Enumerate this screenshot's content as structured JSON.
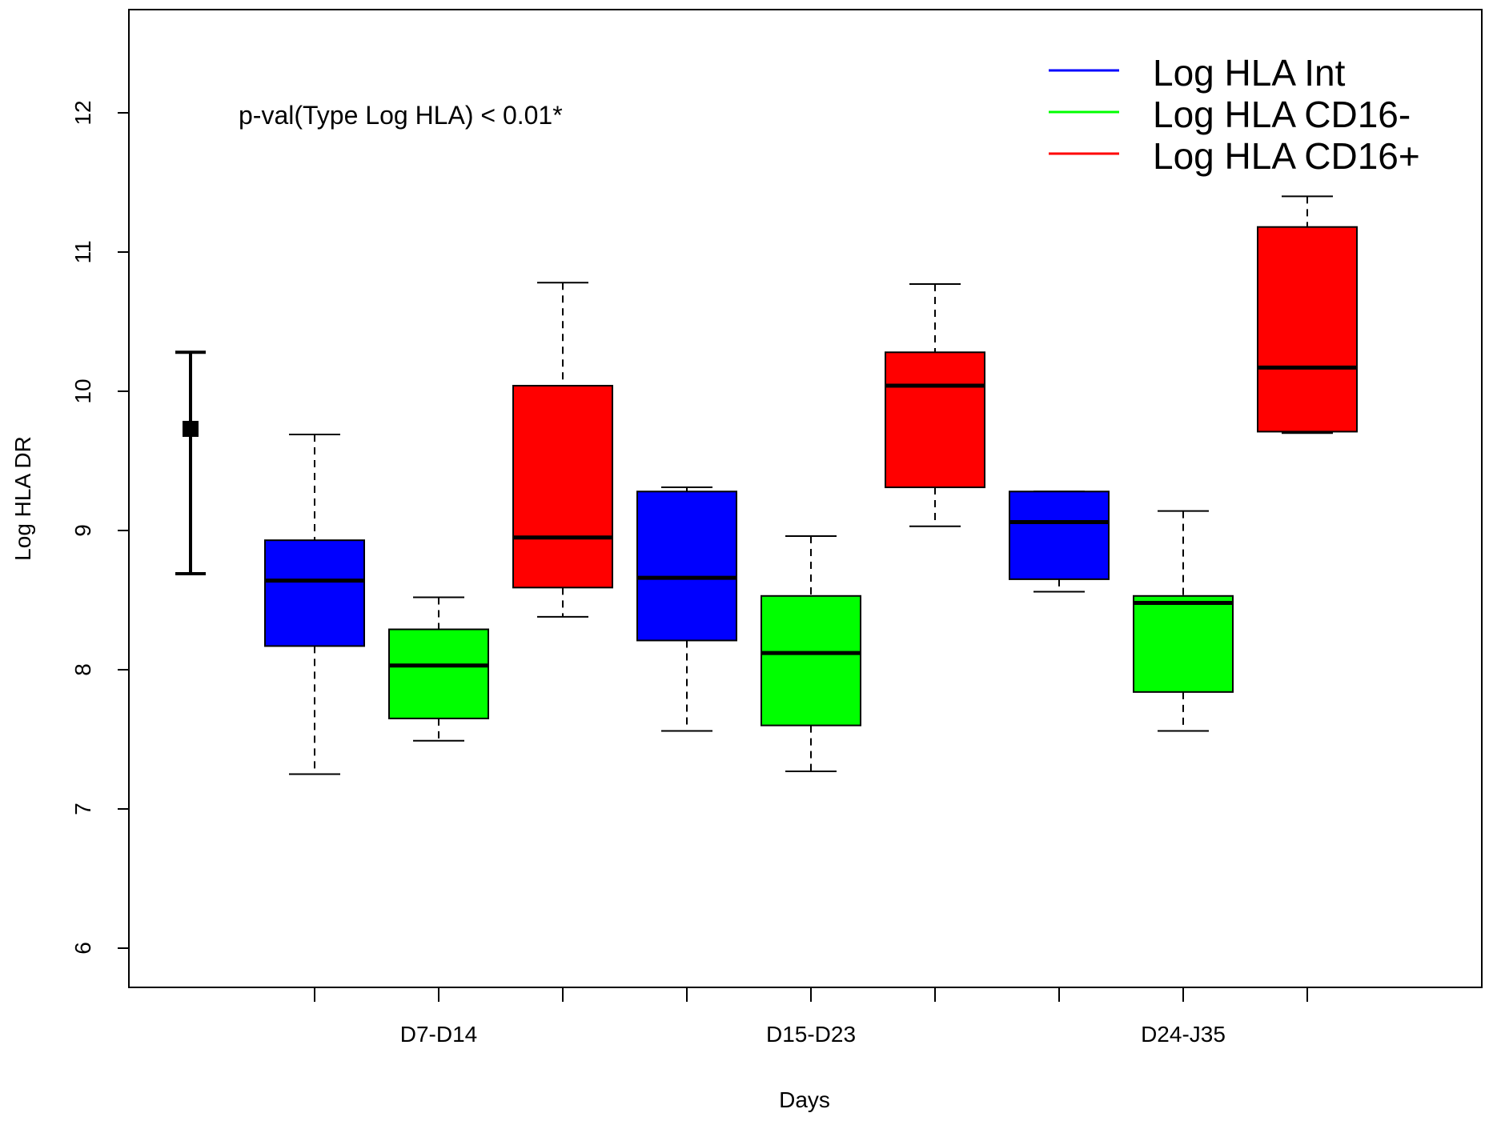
{
  "chart_data": {
    "type": "boxplot",
    "title": "",
    "xlabel": "Days",
    "ylabel": "Log HLA DR",
    "ylim": [
      5.75,
      12.75
    ],
    "yticks": [
      6,
      7,
      8,
      9,
      10,
      11,
      12
    ],
    "yticks_labels": [
      "6",
      "7",
      "8",
      "9",
      "10",
      "11",
      "12"
    ],
    "categories": [
      "D7-D14",
      "D15-D23",
      "D24-J35"
    ],
    "annotation": "p-val(Type Log HLA) < 0.01*",
    "legend_position": "top-right",
    "series": [
      {
        "name": "Log HLA Int",
        "color": "#0000ff",
        "boxes": [
          {
            "min": 7.25,
            "q1": 8.17,
            "median": 8.64,
            "q3": 8.93,
            "max": 9.69
          },
          {
            "min": 7.56,
            "q1": 8.21,
            "median": 8.66,
            "q3": 9.28,
            "max": 9.31
          },
          {
            "min": 8.56,
            "q1": 8.65,
            "median": 9.06,
            "q3": 9.28,
            "max": 9.28
          }
        ]
      },
      {
        "name": "Log HLA CD16-",
        "color": "#00ff00",
        "boxes": [
          {
            "min": 7.49,
            "q1": 7.65,
            "median": 8.03,
            "q3": 8.29,
            "max": 8.52
          },
          {
            "min": 7.27,
            "q1": 7.6,
            "median": 8.12,
            "q3": 8.53,
            "max": 8.96
          },
          {
            "min": 7.56,
            "q1": 7.84,
            "median": 8.48,
            "q3": 8.53,
            "max": 9.14
          }
        ]
      },
      {
        "name": "Log HLA CD16+",
        "color": "#ff0000",
        "boxes": [
          {
            "min": 8.38,
            "q1": 8.59,
            "median": 8.95,
            "q3": 10.04,
            "max": 10.78
          },
          {
            "min": 9.03,
            "q1": 9.31,
            "median": 10.04,
            "q3": 10.28,
            "max": 10.77
          },
          {
            "min": 9.7,
            "q1": 9.71,
            "median": 10.17,
            "q3": 11.18,
            "max": 11.4
          }
        ]
      }
    ],
    "reference_interval": {
      "center": 9.73,
      "lower": 8.69,
      "upper": 10.28
    }
  }
}
